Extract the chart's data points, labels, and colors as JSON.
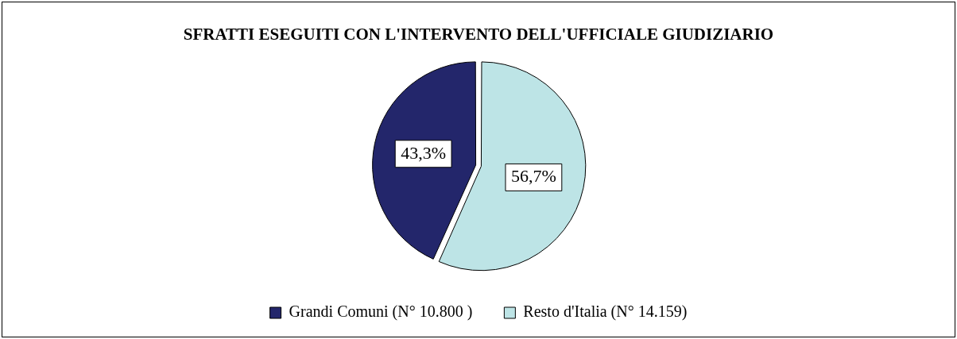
{
  "chart_data": {
    "type": "pie",
    "title": "SFRATTI ESEGUITI CON L'INTERVENTO DELL'UFFICIALE GIUDIZIARIO",
    "categories": [
      "Grandi Comuni (N° 10.800 )",
      "Resto d'Italia (N° 14.159)"
    ],
    "values": [
      43.3,
      56.7
    ],
    "colors": [
      "#23266b",
      "#bde4e6"
    ],
    "value_labels": [
      "43,3%",
      "56,7%"
    ],
    "legend": "bottom"
  }
}
